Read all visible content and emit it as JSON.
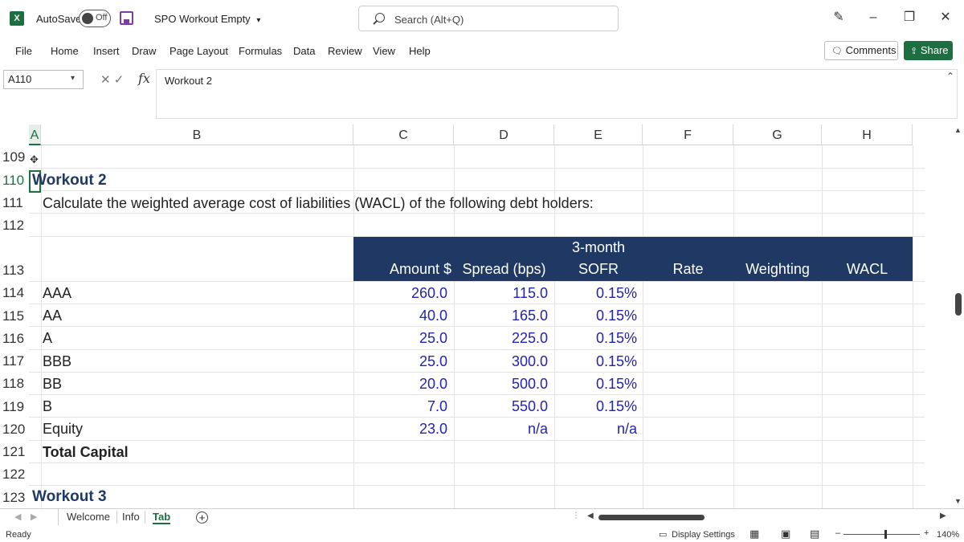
{
  "titlebar": {
    "app_logo": "X",
    "autosave_label": "AutoSave",
    "autosave_state": "Off",
    "doc_title": "SPO Workout Empty",
    "doc_title_caret": "▾",
    "search_placeholder": "Search (Alt+Q)",
    "pen_icon": "✎",
    "minimize": "–",
    "restore": "❐",
    "close": "✕"
  },
  "menu": {
    "items": [
      "File",
      "Home",
      "Insert",
      "Draw",
      "Page Layout",
      "Formulas",
      "Data",
      "Review",
      "View",
      "Help"
    ],
    "comments_label": "Comments",
    "share_label": "Share"
  },
  "formula_bar": {
    "name_box": "A110",
    "fx": "fx",
    "cancel_enter": "✕ ✓",
    "content": "Workout 2"
  },
  "grid": {
    "columns": [
      "A",
      "B",
      "C",
      "D",
      "E",
      "F",
      "G",
      "H"
    ],
    "selected_column": "A",
    "rows": [
      "109",
      "110",
      "111",
      "112",
      "113",
      "114",
      "115",
      "116",
      "117",
      "118",
      "119",
      "120",
      "121",
      "122",
      "123"
    ],
    "selected_row": "110",
    "workout2_title": "Workout 2",
    "instruction": "Calculate the weighted average cost of liabilities (WACL) of the following debt holders:",
    "table_headers": {
      "amount": "Amount $",
      "spread": "Spread (bps)",
      "sofr_line1": "3-month",
      "sofr_line2": "SOFR",
      "rate": "Rate",
      "weighting": "Weighting",
      "wacl": "WACL"
    },
    "table_rows": [
      {
        "label": "AAA",
        "amount": "260.0",
        "spread": "115.0",
        "sofr": "0.15%"
      },
      {
        "label": "AA",
        "amount": "40.0",
        "spread": "165.0",
        "sofr": "0.15%"
      },
      {
        "label": "A",
        "amount": "25.0",
        "spread": "225.0",
        "sofr": "0.15%"
      },
      {
        "label": "BBB",
        "amount": "25.0",
        "spread": "300.0",
        "sofr": "0.15%"
      },
      {
        "label": "BB",
        "amount": "20.0",
        "spread": "500.0",
        "sofr": "0.15%"
      },
      {
        "label": "B",
        "amount": "7.0",
        "spread": "550.0",
        "sofr": "0.15%"
      },
      {
        "label": "Equity",
        "amount": "23.0",
        "spread": "n/a",
        "sofr": "n/a"
      }
    ],
    "total_label": "Total Capital",
    "workout3_title": "Workout 3"
  },
  "sheet_tabs": {
    "tabs": [
      "Welcome",
      "Info",
      "Tab"
    ],
    "active": "Tab",
    "add": "+"
  },
  "status": {
    "ready": "Ready",
    "display_settings": "Display Settings",
    "zoom_minus": "–",
    "zoom_plus": "+",
    "zoom": "140%"
  },
  "colors": {
    "accent": "#1d6f42",
    "header_band": "#1f3864",
    "input_blue": "#2323b0"
  }
}
